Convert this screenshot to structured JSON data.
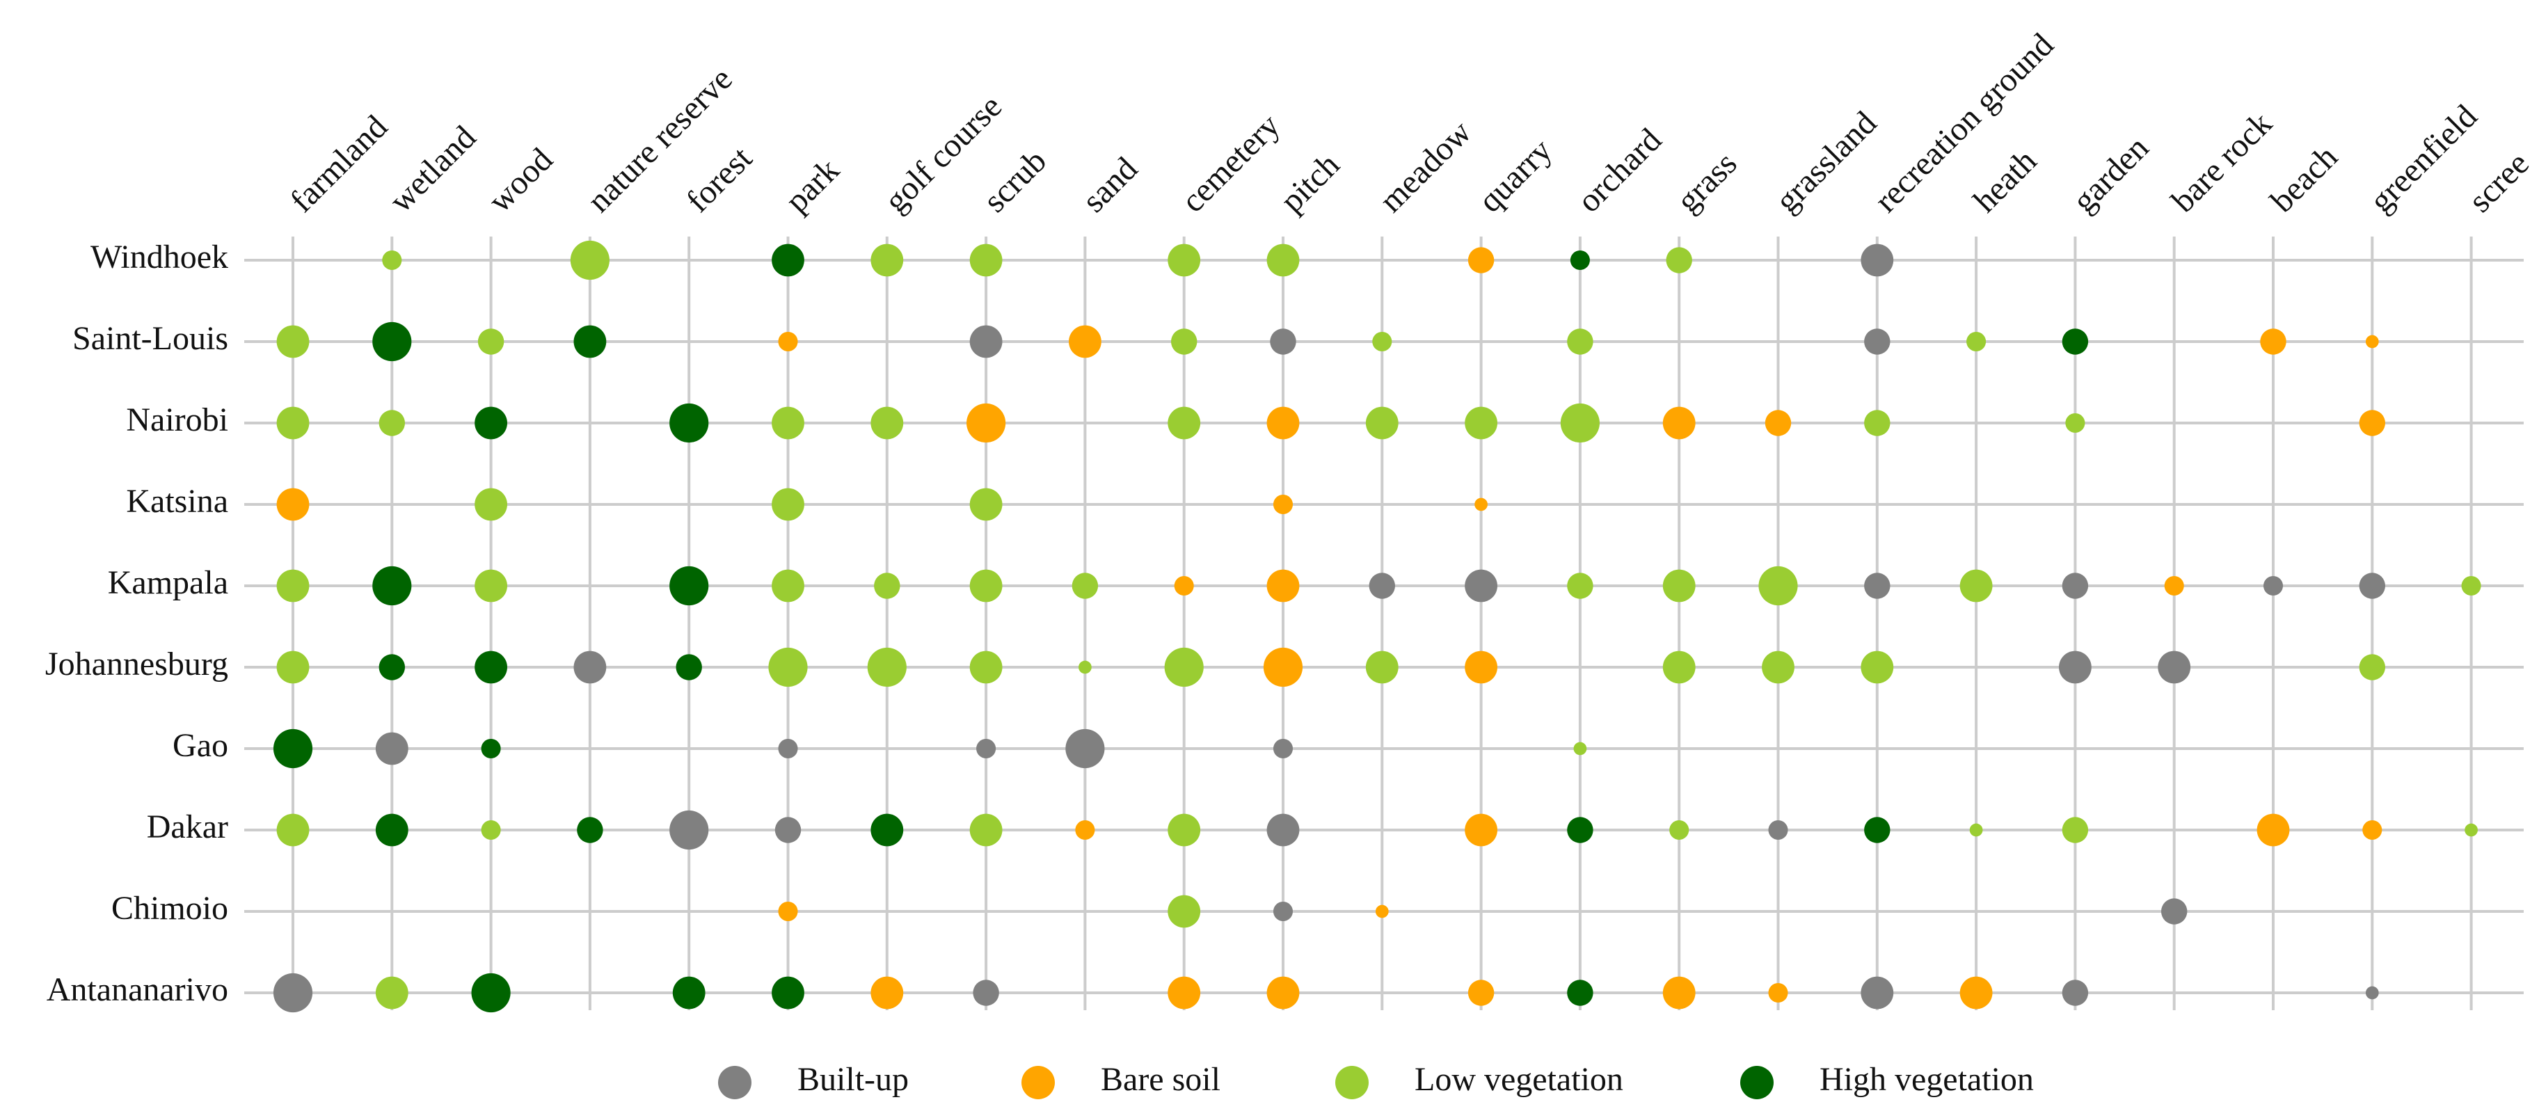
{
  "chart_data": {
    "type": "dot-matrix",
    "columns": [
      "farmland",
      "wetland",
      "wood",
      "nature reserve",
      "forest",
      "park",
      "golf course",
      "scrub",
      "sand",
      "cemetery",
      "pitch",
      "meadow",
      "quarry",
      "orchard",
      "grass",
      "grassland",
      "recreation ground",
      "heath",
      "garden",
      "bare rock",
      "beach",
      "greenfield",
      "scree"
    ],
    "rows": [
      "Windhoek",
      "Saint-Louis",
      "Nairobi",
      "Katsina",
      "Kampala",
      "Johannesburg",
      "Gao",
      "Dakar",
      "Chimoio",
      "Antananarivo"
    ],
    "grid": true,
    "legend": "bottom",
    "series": [
      {
        "name": "Built-up",
        "color": "#808080",
        "values": [
          [
            null,
            null,
            null,
            null,
            null,
            null,
            null,
            null,
            null,
            null,
            null,
            null,
            null,
            null,
            null,
            null,
            4,
            null,
            null,
            null,
            null,
            null,
            null
          ],
          [
            null,
            null,
            null,
            null,
            null,
            null,
            null,
            4,
            null,
            null,
            3,
            null,
            null,
            null,
            null,
            null,
            3,
            null,
            null,
            null,
            null,
            null,
            null
          ],
          [
            null,
            null,
            null,
            null,
            null,
            null,
            null,
            null,
            null,
            null,
            null,
            null,
            null,
            null,
            null,
            null,
            null,
            null,
            null,
            null,
            null,
            null,
            null
          ],
          [
            null,
            null,
            null,
            null,
            null,
            null,
            null,
            null,
            null,
            null,
            null,
            null,
            null,
            null,
            null,
            null,
            null,
            null,
            null,
            null,
            null,
            null,
            null
          ],
          [
            null,
            null,
            null,
            null,
            null,
            null,
            null,
            null,
            null,
            null,
            null,
            3,
            4,
            null,
            null,
            null,
            3,
            null,
            3,
            null,
            2,
            3,
            null
          ],
          [
            null,
            null,
            null,
            4,
            null,
            null,
            null,
            null,
            null,
            null,
            null,
            null,
            null,
            null,
            null,
            null,
            null,
            null,
            4,
            4,
            null,
            null,
            null
          ],
          [
            null,
            4,
            null,
            null,
            null,
            2,
            null,
            2,
            5,
            null,
            2,
            null,
            null,
            null,
            null,
            null,
            null,
            null,
            null,
            null,
            null,
            null,
            null
          ],
          [
            null,
            null,
            null,
            null,
            5,
            3,
            null,
            null,
            null,
            null,
            4,
            null,
            null,
            null,
            null,
            2,
            null,
            null,
            null,
            null,
            null,
            null,
            null
          ],
          [
            null,
            null,
            null,
            null,
            null,
            null,
            null,
            null,
            null,
            null,
            2,
            null,
            null,
            null,
            null,
            null,
            null,
            null,
            null,
            3,
            null,
            null,
            null
          ],
          [
            5,
            null,
            null,
            null,
            null,
            null,
            null,
            3,
            null,
            null,
            null,
            null,
            null,
            null,
            null,
            null,
            4,
            null,
            3,
            null,
            null,
            1,
            null
          ]
        ]
      },
      {
        "name": "Bare soil",
        "color": "#ffa500",
        "values": [
          [
            null,
            null,
            null,
            null,
            null,
            null,
            null,
            null,
            null,
            null,
            null,
            null,
            3,
            null,
            null,
            null,
            null,
            null,
            null,
            null,
            null,
            null,
            null
          ],
          [
            null,
            null,
            null,
            null,
            null,
            2,
            null,
            null,
            4,
            null,
            null,
            null,
            null,
            null,
            null,
            null,
            null,
            null,
            null,
            null,
            3,
            1,
            null
          ],
          [
            null,
            null,
            null,
            null,
            null,
            null,
            null,
            5,
            null,
            null,
            4,
            null,
            null,
            null,
            4,
            3,
            null,
            null,
            null,
            null,
            null,
            3,
            null
          ],
          [
            4,
            null,
            null,
            null,
            null,
            null,
            null,
            null,
            null,
            null,
            2,
            null,
            1,
            null,
            null,
            null,
            null,
            null,
            null,
            null,
            null,
            null,
            null
          ],
          [
            null,
            null,
            null,
            null,
            null,
            null,
            null,
            null,
            null,
            2,
            4,
            null,
            null,
            null,
            null,
            null,
            null,
            null,
            null,
            2,
            null,
            null,
            null
          ],
          [
            null,
            null,
            null,
            null,
            null,
            null,
            null,
            null,
            null,
            null,
            5,
            null,
            4,
            null,
            null,
            null,
            null,
            null,
            null,
            null,
            null,
            null,
            null
          ],
          [
            null,
            null,
            null,
            null,
            null,
            null,
            null,
            null,
            null,
            null,
            null,
            null,
            null,
            null,
            null,
            null,
            null,
            null,
            null,
            null,
            null,
            null,
            null
          ],
          [
            null,
            null,
            null,
            null,
            null,
            null,
            null,
            null,
            2,
            null,
            null,
            null,
            4,
            null,
            null,
            null,
            null,
            null,
            null,
            null,
            4,
            2,
            null
          ],
          [
            null,
            null,
            null,
            null,
            null,
            2,
            null,
            null,
            null,
            null,
            null,
            1,
            null,
            null,
            null,
            null,
            null,
            null,
            null,
            null,
            null,
            null,
            null
          ],
          [
            null,
            null,
            null,
            null,
            null,
            null,
            4,
            null,
            null,
            4,
            4,
            null,
            3,
            null,
            4,
            2,
            null,
            4,
            null,
            null,
            null,
            null,
            null
          ]
        ]
      },
      {
        "name": "Low vegetation",
        "color": "#9acd32",
        "values": [
          [
            null,
            2,
            null,
            5,
            null,
            null,
            4,
            4,
            null,
            4,
            4,
            null,
            null,
            null,
            3,
            null,
            null,
            null,
            null,
            null,
            null,
            null,
            null
          ],
          [
            4,
            null,
            3,
            null,
            null,
            null,
            null,
            null,
            null,
            3,
            null,
            2,
            null,
            3,
            null,
            null,
            null,
            2,
            null,
            null,
            null,
            null,
            null
          ],
          [
            4,
            3,
            null,
            null,
            null,
            4,
            4,
            null,
            null,
            4,
            null,
            4,
            4,
            5,
            null,
            null,
            3,
            null,
            2,
            null,
            null,
            null,
            null
          ],
          [
            null,
            null,
            4,
            null,
            null,
            4,
            null,
            4,
            null,
            null,
            null,
            null,
            null,
            null,
            null,
            null,
            null,
            null,
            null,
            null,
            null,
            null,
            null
          ],
          [
            4,
            null,
            4,
            null,
            null,
            4,
            3,
            4,
            3,
            null,
            null,
            null,
            null,
            3,
            4,
            5,
            null,
            4,
            null,
            null,
            null,
            null,
            2
          ],
          [
            4,
            null,
            null,
            null,
            null,
            5,
            5,
            4,
            1,
            5,
            null,
            4,
            null,
            null,
            4,
            4,
            4,
            null,
            null,
            null,
            null,
            3,
            null
          ],
          [
            null,
            null,
            null,
            null,
            null,
            null,
            null,
            null,
            null,
            null,
            null,
            null,
            null,
            1,
            null,
            null,
            null,
            null,
            null,
            null,
            null,
            null,
            null
          ],
          [
            4,
            null,
            2,
            null,
            null,
            null,
            null,
            4,
            null,
            4,
            null,
            null,
            null,
            null,
            2,
            null,
            null,
            1,
            3,
            null,
            null,
            null,
            1
          ],
          [
            null,
            null,
            null,
            null,
            null,
            null,
            null,
            null,
            null,
            4,
            null,
            null,
            null,
            null,
            null,
            null,
            null,
            null,
            null,
            null,
            null,
            null,
            null
          ],
          [
            null,
            4,
            null,
            null,
            null,
            null,
            null,
            null,
            null,
            null,
            null,
            null,
            null,
            null,
            null,
            null,
            null,
            null,
            null,
            null,
            null,
            null,
            null
          ]
        ]
      },
      {
        "name": "High vegetation",
        "color": "#006400",
        "values": [
          [
            null,
            null,
            null,
            null,
            null,
            4,
            null,
            null,
            null,
            null,
            null,
            null,
            null,
            2,
            null,
            null,
            null,
            null,
            null,
            null,
            null,
            null,
            null
          ],
          [
            null,
            5,
            null,
            4,
            null,
            null,
            null,
            null,
            null,
            null,
            null,
            null,
            null,
            null,
            null,
            null,
            null,
            null,
            3,
            null,
            null,
            null,
            null
          ],
          [
            null,
            null,
            4,
            null,
            5,
            null,
            null,
            null,
            null,
            null,
            null,
            null,
            null,
            null,
            null,
            null,
            null,
            null,
            null,
            null,
            null,
            null,
            null
          ],
          [
            null,
            null,
            null,
            null,
            null,
            null,
            null,
            null,
            null,
            null,
            null,
            null,
            null,
            null,
            null,
            null,
            null,
            null,
            null,
            null,
            null,
            null,
            null
          ],
          [
            null,
            5,
            null,
            null,
            5,
            null,
            null,
            null,
            null,
            null,
            null,
            null,
            null,
            null,
            null,
            null,
            null,
            null,
            null,
            null,
            null,
            null,
            null
          ],
          [
            null,
            3,
            4,
            null,
            3,
            null,
            null,
            null,
            null,
            null,
            null,
            null,
            null,
            null,
            null,
            null,
            null,
            null,
            null,
            null,
            null,
            null,
            null
          ],
          [
            5,
            null,
            2,
            null,
            null,
            null,
            null,
            null,
            null,
            null,
            null,
            null,
            null,
            null,
            null,
            null,
            null,
            null,
            null,
            null,
            null,
            null,
            null
          ],
          [
            null,
            4,
            null,
            3,
            null,
            null,
            4,
            null,
            null,
            null,
            null,
            null,
            null,
            3,
            null,
            null,
            3,
            null,
            null,
            null,
            null,
            null,
            null
          ],
          [
            null,
            null,
            null,
            null,
            null,
            null,
            null,
            null,
            null,
            null,
            null,
            null,
            null,
            null,
            null,
            null,
            null,
            null,
            null,
            null,
            null,
            null,
            null
          ],
          [
            null,
            null,
            5,
            null,
            4,
            4,
            null,
            null,
            null,
            null,
            null,
            null,
            null,
            3,
            null,
            null,
            null,
            null,
            null,
            null,
            null,
            null,
            null
          ]
        ]
      }
    ]
  }
}
